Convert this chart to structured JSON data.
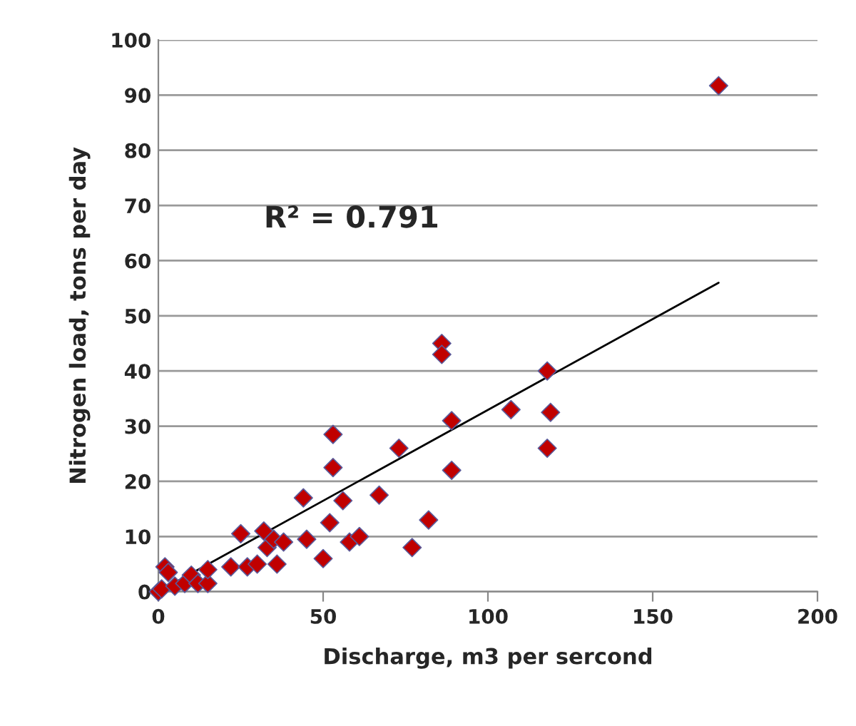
{
  "chart_data": {
    "type": "scatter",
    "xlabel": "Discharge, m3 per sercond",
    "ylabel": "Nitrogen load, tons per day",
    "annotations": [
      "R² = 0.791"
    ],
    "xlim": [
      0,
      200
    ],
    "xticks": [
      0,
      50,
      100,
      150,
      200
    ],
    "ylim": [
      0,
      100
    ],
    "yticks": [
      0,
      10,
      20,
      30,
      40,
      50,
      60,
      70,
      80,
      90,
      100
    ],
    "grid": "y",
    "legend": false,
    "marker": "diamond",
    "series": [
      {
        "color": "#c00000",
        "x": [
          0,
          1,
          2,
          3,
          5,
          8,
          10,
          12,
          15,
          15,
          22,
          25,
          27,
          30,
          32,
          33,
          35,
          36,
          38,
          44,
          45,
          50,
          52,
          53,
          53,
          56,
          58,
          61,
          67,
          73,
          77,
          82,
          86,
          86,
          89,
          89,
          107,
          118,
          119,
          118,
          170
        ],
        "values": [
          0,
          0.5,
          4.5,
          3.5,
          1,
          1.5,
          3,
          1.5,
          1.5,
          4,
          4.5,
          10.5,
          4.5,
          5,
          11,
          8,
          9.5,
          5,
          9,
          17,
          9.5,
          6,
          12.5,
          28.5,
          22.5,
          16.5,
          9,
          10,
          17.5,
          26,
          8,
          13,
          45,
          43,
          31,
          22,
          33,
          40,
          32.5,
          26,
          91.7
        ]
      },
      {
        "type": "line",
        "color": "#000000",
        "x": [
          3,
          170
        ],
        "values": [
          1,
          56
        ],
        "marker": "none"
      }
    ]
  }
}
